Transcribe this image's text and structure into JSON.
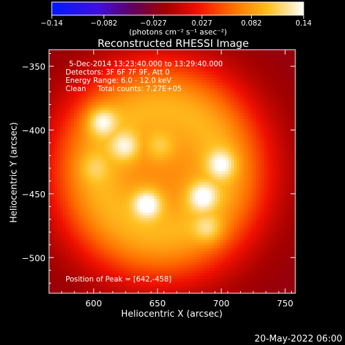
{
  "chart_data": {
    "type": "heatmap",
    "title": "Reconstructed RHESSI Image",
    "xlabel": "Heliocentric X (arcsec)",
    "ylabel": "Heliocentric Y (arcsec)",
    "xlim": [
      565,
      758
    ],
    "ylim": [
      -528,
      -337
    ],
    "x_ticks": [
      600,
      650,
      700,
      750
    ],
    "y_ticks": [
      -350,
      -400,
      -450,
      -500
    ],
    "colorbar": {
      "ticks": [
        -0.14,
        -0.082,
        -0.027,
        0.027,
        0.082,
        0.14
      ],
      "tick_labels": [
        "−0.14",
        "−0.082",
        "−0.027",
        "0.027",
        "0.082",
        "0.14"
      ],
      "unit_label": "(photons cm⁻² s⁻¹ asec⁻²)",
      "range": [
        -0.14,
        0.14
      ],
      "colormap": "RHESSI fire (blue-purple-red-orange-yellow-white)"
    },
    "annotations": [
      "5-Dec-2014 13:23:40.000 to 13:29:40.000",
      "Detectors: 3F 6F 7F 9F, Att 0",
      "Energy Range: 6.0 - 12.0 keV",
      "Clean     Total counts: 7.27E+05"
    ],
    "peak_label": "Position of Peak = [642,-458]",
    "peak": [
      642,
      -458
    ],
    "sources": [
      {
        "x": 606,
        "y": -393,
        "value": 0.125
      },
      {
        "x": 625,
        "y": -413,
        "value": 0.118
      },
      {
        "x": 642,
        "y": -458,
        "value": 0.14
      },
      {
        "x": 685,
        "y": -452,
        "value": 0.128
      },
      {
        "x": 700,
        "y": -427,
        "value": 0.12
      },
      {
        "x": 652,
        "y": -413,
        "value": 0.1
      },
      {
        "x": 690,
        "y": -478,
        "value": 0.105
      },
      {
        "x": 600,
        "y": -430,
        "value": 0.09
      }
    ],
    "background_level": 0.04,
    "grid": false
  },
  "footer": {
    "timestamp": "20-May-2022 06:00"
  }
}
